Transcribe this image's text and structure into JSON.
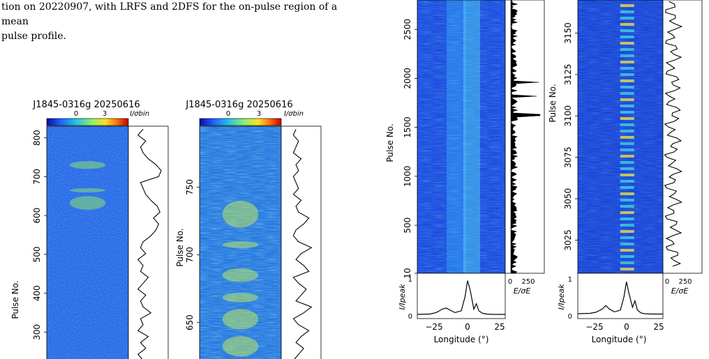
{
  "caption": {
    "line1": "tion on 20220907, with LRFS and 2DFS for the on-pulse region of a mean",
    "line2": "pulse profile."
  },
  "colors": {
    "background_waterfall": "#1f4fe0",
    "colorbar_stops": [
      "#0a0aa0",
      "#1e5cff",
      "#20c0e8",
      "#8cf070",
      "#ffe020",
      "#ff7010",
      "#c00000"
    ],
    "trace": "#000000"
  },
  "chart_data": [
    {
      "type": "heatmap",
      "title": "J1845-0316g 20250616",
      "colorbar": {
        "ticks": [
          "0",
          "3"
        ],
        "label": "I/σbin"
      },
      "ylabel": "Pulse No.",
      "ylim": [
        220,
        830
      ],
      "yticks": [
        300,
        400,
        500,
        600,
        700,
        800
      ],
      "bright_bands": [
        [
          615,
          650
        ],
        [
          660,
          670
        ],
        [
          720,
          740
        ]
      ],
      "side_panel": {
        "type": "line",
        "values": [
          0.3,
          0.1,
          0.4,
          0.2,
          0.5,
          0.1,
          0.3,
          0.2,
          0.6,
          0.3,
          0.2,
          0.4,
          0.1,
          0.3,
          0.5,
          0.2,
          0.3,
          0.1,
          0.4,
          0.2,
          0.3,
          0.6,
          0.8,
          0.9,
          0.7,
          0.95,
          0.85,
          0.6,
          0.4,
          0.3,
          0.2,
          0.9,
          1.0,
          0.8,
          0.5,
          0.3,
          0.2,
          0.4,
          0.1,
          0.3
        ]
      }
    },
    {
      "type": "heatmap",
      "title": "J1845-0316g 20250616",
      "colorbar": {
        "ticks": [
          "0",
          "3"
        ],
        "label": "I/σbin"
      },
      "ylabel": "Pulse No.",
      "ylim": [
        620,
        795
      ],
      "yticks": [
        650,
        700,
        750
      ],
      "bright_bands": [
        [
          625,
          640
        ],
        [
          645,
          660
        ],
        [
          665,
          672
        ],
        [
          680,
          690
        ],
        [
          705,
          710
        ],
        [
          720,
          740
        ]
      ],
      "side_panel": {
        "type": "line",
        "values": [
          0.2,
          0.4,
          0.6,
          0.3,
          0.5,
          0.8,
          0.4,
          0.2,
          0.6,
          0.9,
          0.3,
          0.5,
          0.7,
          0.4,
          0.2,
          0.8,
          0.6,
          0.3,
          0.5,
          0.9,
          0.4,
          0.2,
          0.3,
          0.6,
          0.8,
          0.4,
          0.3,
          0.5,
          0.2,
          0.4,
          0.3,
          0.2,
          0.4,
          0.3,
          0.5,
          0.2,
          0.3,
          0.4,
          0.2,
          0.3
        ]
      }
    },
    {
      "type": "heatmap",
      "ylabel": "Pulse No.",
      "ylim": [
        10,
        2800
      ],
      "yticks": [
        10,
        500,
        1000,
        1500,
        2000,
        2500
      ],
      "side_panel": {
        "type": "line",
        "xlabel": "E/σE",
        "xticks": [
          "0",
          "250"
        ]
      },
      "profile": {
        "type": "line",
        "xlabel": "Longitude (°)",
        "ylabel": "I/Ipeak",
        "xticks": [
          "−25",
          "0",
          "25"
        ],
        "yticks": [
          "0",
          "1"
        ],
        "x": [
          -40,
          -30,
          -25,
          -20,
          -17,
          -14,
          -10,
          -5,
          -2,
          0,
          2,
          5,
          7,
          9,
          12,
          15,
          20,
          30
        ],
        "y": [
          0.0,
          0.01,
          0.05,
          0.15,
          0.18,
          0.12,
          0.05,
          0.1,
          0.5,
          0.95,
          0.7,
          0.15,
          0.3,
          0.1,
          0.03,
          0.01,
          0.0,
          0.0
        ]
      }
    },
    {
      "type": "heatmap",
      "ylabel": "Pulse No.",
      "ylim": [
        3005,
        3170
      ],
      "yticks": [
        3025,
        3050,
        3075,
        3100,
        3125,
        3150
      ],
      "side_panel": {
        "type": "line",
        "xlabel": "E/σE",
        "xticks": [
          "0",
          "250"
        ]
      },
      "profile": {
        "type": "line",
        "xlabel": "Longitude (°)",
        "ylabel": "I/Ipeak",
        "xticks": [
          "−25",
          "0",
          "25"
        ],
        "yticks": [
          "0",
          "1"
        ],
        "x": [
          -40,
          -30,
          -25,
          -20,
          -17,
          -14,
          -10,
          -5,
          -2,
          0,
          2,
          5,
          7,
          9,
          12,
          15,
          20,
          30
        ],
        "y": [
          0.02,
          0.03,
          0.06,
          0.15,
          0.25,
          0.15,
          0.07,
          0.12,
          0.5,
          0.92,
          0.6,
          0.2,
          0.38,
          0.12,
          0.04,
          0.02,
          0.01,
          0.01
        ]
      }
    }
  ]
}
